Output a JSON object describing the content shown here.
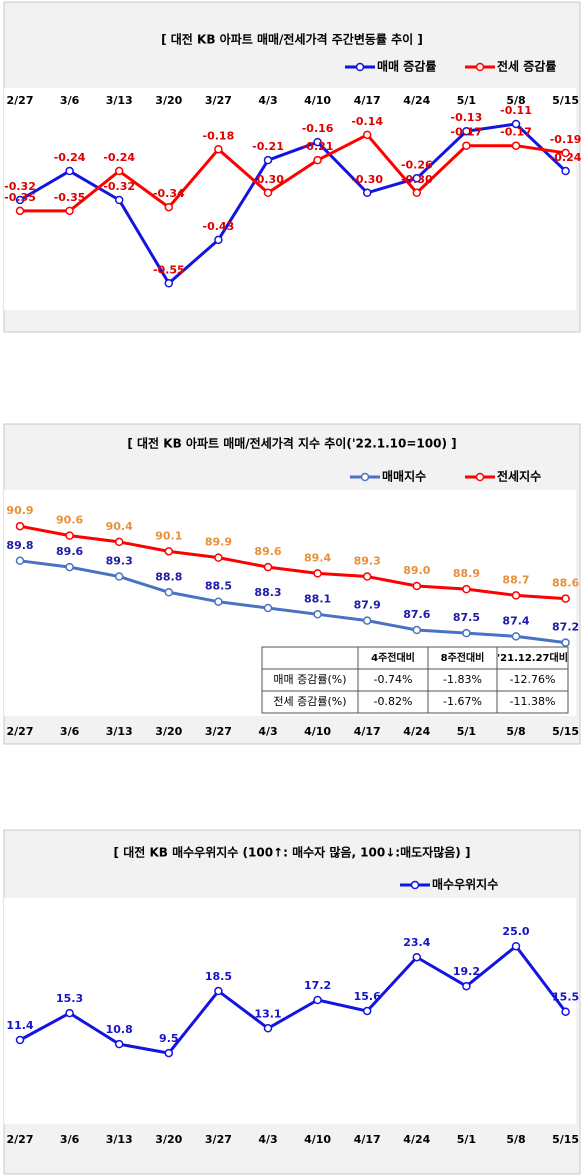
{
  "chart_data": [
    {
      "type": "line",
      "title": "[ 대전  KB 아파트 매매/전세가격 주간변동률 추이 ]",
      "categories": [
        "2/27",
        "3/6",
        "3/13",
        "3/20",
        "3/27",
        "4/3",
        "4/10",
        "4/17",
        "4/24",
        "5/1",
        "5/8",
        "5/15"
      ],
      "series": [
        {
          "name": "매매 증감률",
          "color": "#1414e0",
          "label_color": "#e00000",
          "values": [
            -0.32,
            -0.24,
            -0.32,
            -0.55,
            -0.43,
            -0.21,
            -0.16,
            -0.3,
            -0.26,
            -0.13,
            -0.11,
            -0.24
          ],
          "value_labels": [
            "-0.32",
            "-0.24",
            "-0.32",
            "-0.55",
            "-0.43",
            "-0.21",
            "-0.16",
            "-0.30",
            "-0.26",
            "-0.13",
            "-0.11",
            "-0.24"
          ]
        },
        {
          "name": "전세 증감률",
          "color": "#ff0000",
          "label_color": "#e00000",
          "values": [
            -0.35,
            -0.35,
            -0.24,
            -0.34,
            -0.18,
            -0.3,
            -0.21,
            -0.14,
            -0.3,
            -0.17,
            -0.17,
            -0.19
          ],
          "value_labels": [
            "-0.35",
            "-0.35",
            "-0.24",
            "-0.34",
            "-0.18",
            "-0.30",
            "-0.21",
            "-0.14",
            "-0.30",
            "-0.17",
            "-0.17",
            "-0.19"
          ]
        }
      ],
      "ylim": [
        -0.61,
        -0.03
      ]
    },
    {
      "type": "line",
      "title": "[ 대전  KB 아파트 매매/전세가격 지수 추이('22.1.10=100) ]",
      "categories": [
        "2/27",
        "3/6",
        "3/13",
        "3/20",
        "3/27",
        "4/3",
        "4/10",
        "4/17",
        "4/24",
        "5/1",
        "5/8",
        "5/15"
      ],
      "series": [
        {
          "name": "매매지수",
          "color": "#4a72c4",
          "label_color": "#1c1ca8",
          "values": [
            89.8,
            89.6,
            89.3,
            88.8,
            88.5,
            88.3,
            88.1,
            87.9,
            87.6,
            87.5,
            87.4,
            87.2
          ],
          "value_labels": [
            "89.8",
            "89.6",
            "89.3",
            "88.8",
            "88.5",
            "88.3",
            "88.1",
            "87.9",
            "87.6",
            "87.5",
            "87.4",
            "87.2"
          ]
        },
        {
          "name": "전세지수",
          "color": "#ff0000",
          "label_color": "#e8903a",
          "values": [
            90.9,
            90.6,
            90.4,
            90.1,
            89.9,
            89.6,
            89.4,
            89.3,
            89.0,
            88.9,
            88.7,
            88.6
          ],
          "value_labels": [
            "90.9",
            "90.6",
            "90.4",
            "90.1",
            "89.9",
            "89.6",
            "89.4",
            "89.3",
            "89.0",
            "88.9",
            "88.7",
            "88.6"
          ]
        }
      ],
      "ylim": [
        84.9,
        92.05
      ],
      "table": {
        "header": [
          "4주전대비",
          "8주전대비",
          "'21.12.27대비"
        ],
        "rows": [
          [
            "매매 증감률(%)",
            "-0.74%",
            "-1.83%",
            "-12.76%"
          ],
          [
            "전세 증감률(%)",
            "-0.82%",
            "-1.67%",
            "-11.38%"
          ]
        ]
      }
    },
    {
      "type": "line",
      "title": "[ 대전  KB 매수우위지수 (100↑: 매수자 많음, 100↓:매도자많음) ]",
      "categories": [
        "2/27",
        "3/6",
        "3/13",
        "3/20",
        "3/27",
        "4/3",
        "4/10",
        "4/17",
        "4/24",
        "5/1",
        "5/8",
        "5/15"
      ],
      "series": [
        {
          "name": "매수우위지수",
          "color": "#1414e0",
          "label_color": "#1414c8",
          "values": [
            11.4,
            15.3,
            10.8,
            9.5,
            18.5,
            13.1,
            17.2,
            15.6,
            23.4,
            19.2,
            25.0,
            15.5
          ],
          "value_labels": [
            "11.4",
            "15.3",
            "10.8",
            "9.5",
            "18.5",
            "13.1",
            "17.2",
            "15.6",
            "23.4",
            "19.2",
            "25.0",
            "15.5"
          ]
        }
      ],
      "ylim": [
        -0.2,
        31.7
      ]
    }
  ]
}
